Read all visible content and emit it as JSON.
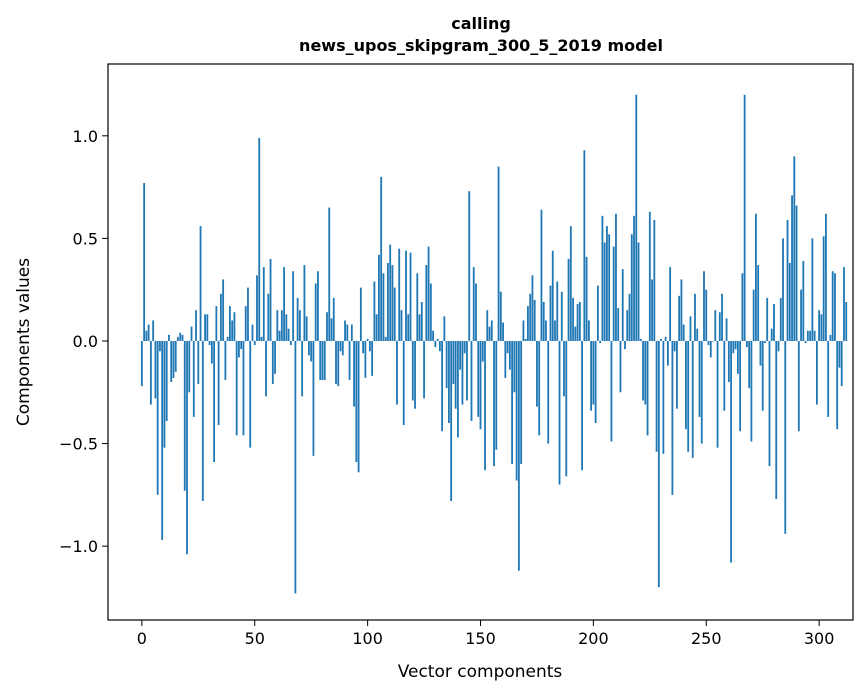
{
  "chart_data": {
    "type": "bar",
    "title": "calling",
    "subtitle": "news_upos_skipgram_300_5_2019 model",
    "xlabel": "Vector components",
    "ylabel": "Components values",
    "xlim": [
      -15,
      315
    ],
    "ylim": [
      -1.36,
      1.35
    ],
    "xticks": [
      0,
      50,
      100,
      150,
      200,
      250,
      300
    ],
    "xtick_labels": [
      "0",
      "50",
      "100",
      "150",
      "200",
      "250",
      "300"
    ],
    "yticks": [
      -1.0,
      -0.5,
      0.0,
      0.5,
      1.0
    ],
    "ytick_labels": [
      "−1.0",
      "−0.5",
      "0.0",
      "0.5",
      "1.0"
    ],
    "bar_color": "#1f77b4",
    "values": [
      -0.22,
      0.77,
      0.05,
      0.08,
      -0.31,
      0.1,
      -0.28,
      -0.75,
      -0.05,
      -0.97,
      -0.52,
      -0.39,
      0.03,
      -0.2,
      -0.18,
      -0.15,
      0.02,
      0.04,
      0.03,
      -0.73,
      -1.04,
      -0.25,
      0.07,
      -0.37,
      0.15,
      -0.21,
      0.56,
      -0.78,
      0.13,
      0.13,
      -0.02,
      -0.11,
      -0.59,
      0.17,
      -0.41,
      0.23,
      0.3,
      -0.19,
      0.02,
      0.17,
      0.1,
      0.14,
      -0.46,
      -0.08,
      -0.04,
      -0.46,
      0.17,
      0.26,
      -0.52,
      0.08,
      -0.02,
      0.32,
      0.99,
      0.02,
      0.36,
      -0.27,
      0.23,
      0.4,
      -0.21,
      -0.16,
      0.15,
      0.05,
      0.15,
      0.36,
      0.13,
      0.06,
      -0.02,
      0.34,
      -1.23,
      0.21,
      0.15,
      -0.27,
      0.37,
      0.12,
      -0.07,
      -0.1,
      -0.56,
      0.28,
      0.34,
      -0.19,
      -0.19,
      -0.19,
      0.14,
      0.65,
      0.11,
      0.21,
      -0.21,
      -0.22,
      -0.05,
      -0.07,
      0.1,
      0.08,
      -0.19,
      0.08,
      -0.32,
      -0.59,
      -0.64,
      0.26,
      -0.06,
      -0.18,
      0.01,
      -0.05,
      -0.17,
      0.29,
      0.13,
      0.42,
      0.8,
      0.33,
      0.02,
      0.38,
      0.47,
      0.37,
      0.26,
      -0.31,
      0.45,
      0.15,
      -0.41,
      0.44,
      0.13,
      0.43,
      -0.29,
      -0.33,
      0.33,
      0.13,
      0.19,
      -0.28,
      0.37,
      0.46,
      0.28,
      0.05,
      -0.03,
      0.01,
      -0.05,
      -0.44,
      0.12,
      -0.23,
      -0.4,
      -0.78,
      -0.21,
      -0.33,
      -0.47,
      -0.14,
      -0.31,
      -0.06,
      -0.29,
      0.73,
      -0.39,
      0.36,
      0.28,
      -0.37,
      -0.43,
      -0.1,
      -0.63,
      0.15,
      0.07,
      0.1,
      -0.61,
      -0.53,
      0.85,
      0.24,
      0.09,
      -0.18,
      -0.06,
      -0.14,
      -0.6,
      -0.25,
      -0.68,
      -1.12,
      -0.6,
      0.1,
      0.01,
      0.17,
      0.23,
      0.32,
      0.2,
      -0.32,
      -0.46,
      0.64,
      0.19,
      0.1,
      -0.5,
      0.27,
      0.44,
      0.1,
      0.29,
      -0.7,
      0.24,
      -0.27,
      -0.66,
      0.4,
      0.56,
      0.21,
      0.07,
      0.18,
      0.19,
      -0.63,
      0.93,
      0.41,
      0.1,
      -0.34,
      -0.31,
      -0.4,
      0.27,
      -0.01,
      0.61,
      0.48,
      0.56,
      0.52,
      -0.49,
      0.46,
      0.62,
      0.16,
      -0.25,
      0.35,
      -0.04,
      0.15,
      0.23,
      0.52,
      0.61,
      1.2,
      0.48,
      0.01,
      -0.29,
      -0.31,
      -0.46,
      0.63,
      0.3,
      0.59,
      -0.54,
      -1.2,
      0.01,
      -0.55,
      0.02,
      -0.12,
      0.36,
      -0.75,
      -0.05,
      -0.33,
      0.22,
      0.3,
      0.08,
      -0.43,
      -0.54,
      0.12,
      -0.57,
      0.23,
      0.06,
      -0.37,
      -0.5,
      0.34,
      0.25,
      -0.02,
      -0.08,
      0.0,
      0.15,
      -0.52,
      0.14,
      0.23,
      -0.34,
      0.11,
      -0.2,
      -1.08,
      -0.06,
      -0.04,
      -0.16,
      -0.44,
      0.33,
      1.2,
      -0.03,
      -0.23,
      -0.49,
      0.25,
      0.62,
      0.37,
      -0.12,
      -0.34,
      -0.01,
      0.21,
      -0.61,
      0.06,
      0.18,
      -0.77,
      -0.05,
      0.21,
      0.5,
      -0.94,
      0.59,
      0.38,
      0.71,
      0.9,
      0.66,
      -0.44,
      0.25,
      0.39,
      -0.01,
      0.05,
      0.05,
      0.5,
      0.05,
      -0.31,
      0.15,
      0.13,
      0.51,
      0.62,
      -0.37,
      0.03,
      0.34,
      0.33,
      -0.43,
      -0.13,
      -0.22,
      0.36,
      0.19
    ]
  }
}
